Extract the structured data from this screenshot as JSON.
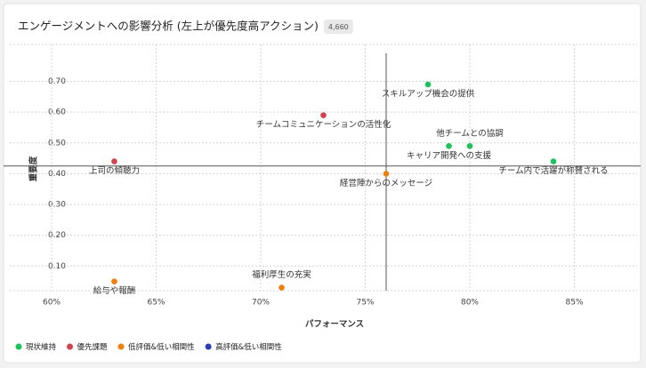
{
  "chart_data": {
    "type": "scatter",
    "title": "エンゲージメントへの影響分析 (左上が優先度高アクション)",
    "badge": "4,660",
    "x_label": "パフォーマンス",
    "y_label": "重要度",
    "xlim": [
      58,
      88
    ],
    "ylim": [
      0.02,
      0.82
    ],
    "xticks": [
      {
        "value": 60,
        "label": "60%"
      },
      {
        "value": 65,
        "label": "65%"
      },
      {
        "value": 70,
        "label": "70%"
      },
      {
        "value": 75,
        "label": "75%"
      },
      {
        "value": 80,
        "label": "80%"
      },
      {
        "value": 85,
        "label": "85%"
      }
    ],
    "yticks": [
      {
        "value": 0.1,
        "label": "0.10"
      },
      {
        "value": 0.2,
        "label": "0.20"
      },
      {
        "value": 0.3,
        "label": "0.30"
      },
      {
        "value": 0.4,
        "label": "0.40"
      },
      {
        "value": 0.5,
        "label": "0.50"
      },
      {
        "value": 0.6,
        "label": "0.60"
      },
      {
        "value": 0.7,
        "label": "0.70"
      }
    ],
    "grid": true,
    "reference_lines": {
      "x": 76,
      "y": 0.425
    },
    "legend": "bottom-left",
    "series": [
      {
        "name": "現状維持",
        "color": "#1ec25a",
        "x": [
          78,
          79,
          80,
          84
        ],
        "values": [
          0.69,
          0.49,
          0.49,
          0.44
        ],
        "labels": [
          "スキルアップ機会の提供",
          "キャリア開発への支援",
          "他チームとの協調",
          "チーム内で活躍が称賛される"
        ]
      },
      {
        "name": "優先課題",
        "color": "#d1434f",
        "x": [
          73,
          63
        ],
        "values": [
          0.59,
          0.44
        ],
        "labels": [
          "チームコミュニケーションの活性化",
          "上司の傾聴力"
        ]
      },
      {
        "name": "低評価&低い相関性",
        "color": "#f07f0c",
        "x": [
          76,
          63,
          71
        ],
        "values": [
          0.4,
          0.05,
          0.03
        ],
        "labels": [
          "経営陣からのメッセージ",
          "給与や報酬",
          "福利厚生の充実"
        ]
      },
      {
        "name": "高評価&低い相関性",
        "color": "#2b3bb5",
        "x": [],
        "values": [],
        "labels": []
      }
    ]
  }
}
